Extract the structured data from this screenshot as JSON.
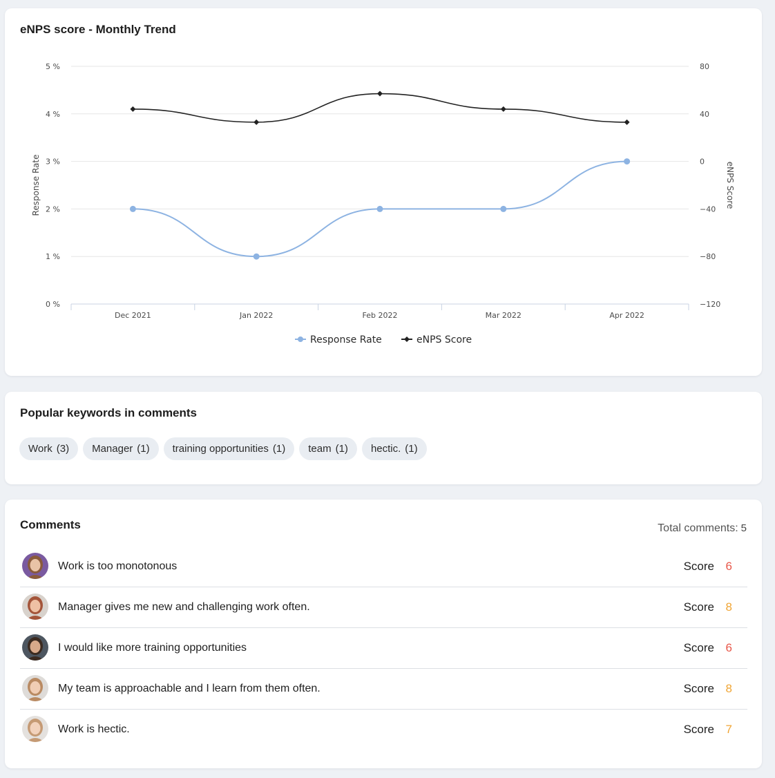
{
  "chart_card": {
    "title": "eNPS score - Monthly Trend"
  },
  "chart_data": {
    "type": "line",
    "title": "eNPS score - Monthly Trend",
    "categories": [
      "Dec 2021",
      "Jan 2022",
      "Feb 2022",
      "Mar 2022",
      "Apr 2022"
    ],
    "series": [
      {
        "name": "Response Rate",
        "axis": "left",
        "values": [
          2,
          1,
          2,
          2,
          3
        ],
        "color": "#8db3e2",
        "marker": "circle"
      },
      {
        "name": "eNPS Score",
        "axis": "right",
        "values": [
          44,
          33,
          57,
          44,
          33
        ],
        "color": "#222222",
        "marker": "diamond"
      }
    ],
    "y_left": {
      "label": "Response Rate",
      "ticks": [
        "0 %",
        "1 %",
        "2 %",
        "3 %",
        "4 %",
        "5 %"
      ],
      "ylim": [
        0,
        5
      ]
    },
    "y_right": {
      "label": "eNPS Score",
      "ticks": [
        "−120",
        "−80",
        "−40",
        "0",
        "40",
        "80"
      ],
      "ylim": [
        -120,
        80
      ]
    },
    "grid": true,
    "legend": "bottom-center"
  },
  "keywords_card": {
    "title": "Popular keywords in comments",
    "chips": [
      {
        "label": "Work",
        "count": "(3)"
      },
      {
        "label": "Manager",
        "count": "(1)"
      },
      {
        "label": "training opportunities",
        "count": "(1)"
      },
      {
        "label": "team",
        "count": "(1)"
      },
      {
        "label": "hectic.",
        "count": "(1)"
      }
    ]
  },
  "comments_card": {
    "title": "Comments",
    "total_label": "Total comments:",
    "total_value": "5",
    "score_label": "Score",
    "rows": [
      {
        "text": "Work is too monotonous",
        "score": "6",
        "score_color": "#e8574a",
        "avatar_skin": "#e9c3a6",
        "avatar_hair": "#8a5a3b",
        "avatar_bg": "#7a5aa0"
      },
      {
        "text": "Manager gives me new and challenging work often.",
        "score": "8",
        "score_color": "#f0a534",
        "avatar_skin": "#eec1a4",
        "avatar_hair": "#a4553a",
        "avatar_bg": "#d8d2cc"
      },
      {
        "text": "I would like more training opportunities",
        "score": "6",
        "score_color": "#e8574a",
        "avatar_skin": "#d8a98a",
        "avatar_hair": "#3b2a20",
        "avatar_bg": "#4d5660"
      },
      {
        "text": "My team is approachable and I learn from them often.",
        "score": "8",
        "score_color": "#f0a534",
        "avatar_skin": "#f0cdb4",
        "avatar_hair": "#b98a62",
        "avatar_bg": "#dedbd8"
      },
      {
        "text": "Work is hectic.",
        "score": "7",
        "score_color": "#f0a534",
        "avatar_skin": "#f2d2bc",
        "avatar_hair": "#c59a74",
        "avatar_bg": "#e4e1de"
      }
    ]
  }
}
